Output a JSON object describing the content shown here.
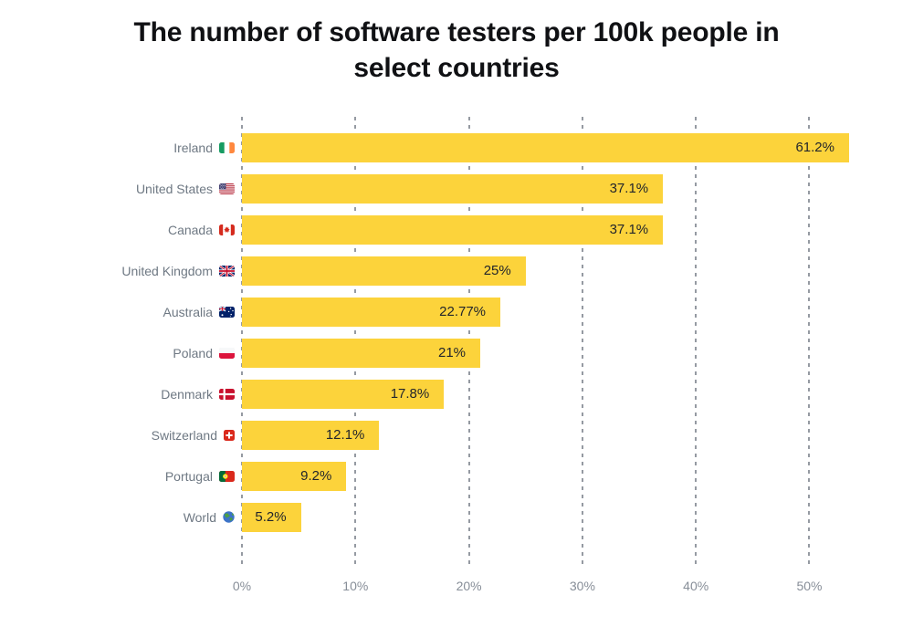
{
  "title": {
    "line1": "The number of software testers per 100k people in",
    "line2": "select countries",
    "full": "The number of software testers per 100k people in select countries"
  },
  "chart_data": {
    "type": "bar",
    "orientation": "horizontal",
    "title": "The number of software testers per 100k people in select countries",
    "categories": [
      "Ireland",
      "United States",
      "Canada",
      "United Kingdom",
      "Australia",
      "Poland",
      "Denmark",
      "Switzerland",
      "Portugal",
      "World"
    ],
    "values": [
      61.2,
      37.1,
      37.1,
      25,
      22.77,
      21,
      17.8,
      12.1,
      9.2,
      5.2
    ],
    "value_labels": [
      "61.2%",
      "37.1%",
      "37.1%",
      "25%",
      "22.77%",
      "21%",
      "17.8%",
      "12.1%",
      "9.2%",
      "5.2%"
    ],
    "flag_icons": [
      "flag-ireland",
      "flag-united-states",
      "flag-canada",
      "flag-united-kingdom",
      "flag-australia",
      "flag-poland",
      "flag-denmark",
      "flag-switzerland",
      "flag-portugal",
      "globe-world"
    ],
    "xlabel": "",
    "ylabel": "",
    "x_tick_values": [
      0,
      10,
      20,
      30,
      40,
      50
    ],
    "x_tick_labels": [
      "0%",
      "10%",
      "20%",
      "30%",
      "40%",
      "50%"
    ],
    "x_axis_visible_max": 53.5,
    "bar_color": "#FCD33B",
    "grid": true,
    "gridline_style": "dashed",
    "legend": false,
    "note_largest_bar_clipped_at_plot_edge": true
  }
}
